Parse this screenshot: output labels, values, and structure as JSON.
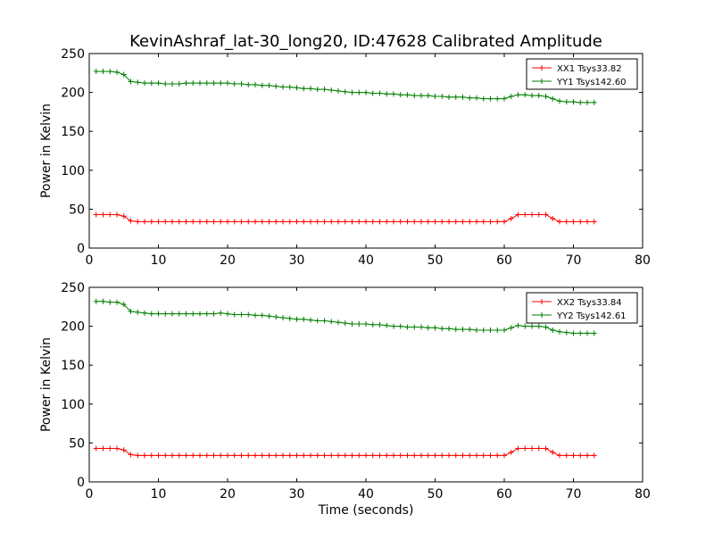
{
  "title": "KevinAshraf_lat-30_long20, ID:47628 Calibrated Amplitude",
  "colors": {
    "xx": "#ff0000",
    "yy": "#007f00",
    "axis": "#000000",
    "background": "#ffffff"
  },
  "chart_data": [
    {
      "type": "line",
      "title": "KevinAshraf_lat-30_long20, ID:47628 Calibrated Amplitude",
      "xlabel": "",
      "ylabel": "Power in Kelvin",
      "xlim": [
        0,
        80
      ],
      "ylim": [
        0,
        250
      ],
      "xticks": [
        0,
        10,
        20,
        30,
        40,
        50,
        60,
        70,
        80
      ],
      "yticks": [
        0,
        50,
        100,
        150,
        200,
        250
      ],
      "grid": false,
      "legend_position": "top-right",
      "marker": "+",
      "x": [
        1,
        2,
        3,
        4,
        5,
        6,
        7,
        8,
        9,
        10,
        11,
        12,
        13,
        14,
        15,
        16,
        17,
        18,
        19,
        20,
        21,
        22,
        23,
        24,
        25,
        26,
        27,
        28,
        29,
        30,
        31,
        32,
        33,
        34,
        35,
        36,
        37,
        38,
        39,
        40,
        41,
        42,
        43,
        44,
        45,
        46,
        47,
        48,
        49,
        50,
        51,
        52,
        53,
        54,
        55,
        56,
        57,
        58,
        59,
        60,
        61,
        62,
        63,
        64,
        65,
        66,
        67,
        68,
        69,
        70,
        71,
        72,
        73
      ],
      "series": [
        {
          "name": "XX1 Tsys33.82",
          "color": "#ff0000",
          "values": [
            43,
            43,
            43,
            43,
            41,
            35,
            34,
            34,
            34,
            34,
            34,
            34,
            34,
            34,
            34,
            34,
            34,
            34,
            34,
            34,
            34,
            34,
            34,
            34,
            34,
            34,
            34,
            34,
            34,
            34,
            34,
            34,
            34,
            34,
            34,
            34,
            34,
            34,
            34,
            34,
            34,
            34,
            34,
            34,
            34,
            34,
            34,
            34,
            34,
            34,
            34,
            34,
            34,
            34,
            34,
            34,
            34,
            34,
            34,
            34,
            38,
            43,
            43,
            43,
            43,
            43,
            38,
            34,
            34,
            34,
            34,
            34,
            34
          ]
        },
        {
          "name": "YY1 Tsys142.60",
          "color": "#007f00",
          "values": [
            227,
            227,
            227,
            226,
            223,
            214,
            213,
            212,
            212,
            212,
            211,
            211,
            211,
            212,
            212,
            212,
            212,
            212,
            212,
            212,
            211,
            211,
            210,
            210,
            209,
            209,
            208,
            207,
            207,
            206,
            205,
            205,
            204,
            204,
            203,
            202,
            201,
            200,
            200,
            200,
            199,
            199,
            198,
            198,
            197,
            197,
            196,
            196,
            196,
            195,
            195,
            194,
            194,
            194,
            193,
            193,
            192,
            192,
            192,
            192,
            195,
            197,
            197,
            196,
            196,
            195,
            192,
            189,
            188,
            188,
            187,
            187,
            187
          ]
        }
      ]
    },
    {
      "type": "line",
      "title": "",
      "xlabel": "Time (seconds)",
      "ylabel": "Power in Kelvin",
      "xlim": [
        0,
        80
      ],
      "ylim": [
        0,
        250
      ],
      "xticks": [
        0,
        10,
        20,
        30,
        40,
        50,
        60,
        70,
        80
      ],
      "yticks": [
        0,
        50,
        100,
        150,
        200,
        250
      ],
      "grid": false,
      "legend_position": "top-right",
      "marker": "+",
      "x": [
        1,
        2,
        3,
        4,
        5,
        6,
        7,
        8,
        9,
        10,
        11,
        12,
        13,
        14,
        15,
        16,
        17,
        18,
        19,
        20,
        21,
        22,
        23,
        24,
        25,
        26,
        27,
        28,
        29,
        30,
        31,
        32,
        33,
        34,
        35,
        36,
        37,
        38,
        39,
        40,
        41,
        42,
        43,
        44,
        45,
        46,
        47,
        48,
        49,
        50,
        51,
        52,
        53,
        54,
        55,
        56,
        57,
        58,
        59,
        60,
        61,
        62,
        63,
        64,
        65,
        66,
        67,
        68,
        69,
        70,
        71,
        72,
        73
      ],
      "series": [
        {
          "name": "XX2 Tsys33.84",
          "color": "#ff0000",
          "values": [
            43,
            43,
            43,
            43,
            41,
            35,
            34,
            34,
            34,
            34,
            34,
            34,
            34,
            34,
            34,
            34,
            34,
            34,
            34,
            34,
            34,
            34,
            34,
            34,
            34,
            34,
            34,
            34,
            34,
            34,
            34,
            34,
            34,
            34,
            34,
            34,
            34,
            34,
            34,
            34,
            34,
            34,
            34,
            34,
            34,
            34,
            34,
            34,
            34,
            34,
            34,
            34,
            34,
            34,
            34,
            34,
            34,
            34,
            34,
            34,
            38,
            43,
            43,
            43,
            43,
            43,
            38,
            34,
            34,
            34,
            34,
            34,
            34
          ]
        },
        {
          "name": "YY2 Tsys142.61",
          "color": "#007f00",
          "values": [
            232,
            232,
            231,
            231,
            228,
            219,
            218,
            217,
            216,
            216,
            216,
            216,
            216,
            216,
            216,
            216,
            216,
            216,
            217,
            216,
            215,
            215,
            215,
            214,
            214,
            213,
            212,
            211,
            210,
            209,
            209,
            208,
            207,
            207,
            206,
            205,
            204,
            203,
            203,
            203,
            202,
            202,
            201,
            200,
            200,
            199,
            199,
            199,
            198,
            198,
            197,
            197,
            196,
            196,
            196,
            195,
            195,
            195,
            195,
            195,
            198,
            201,
            200,
            200,
            200,
            199,
            195,
            193,
            192,
            191,
            191,
            191,
            191
          ]
        }
      ]
    }
  ]
}
